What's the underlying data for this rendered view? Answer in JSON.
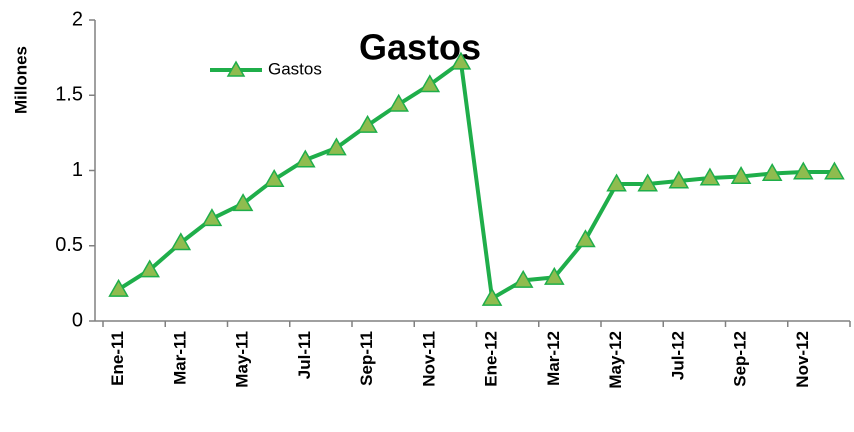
{
  "chart_data": {
    "type": "line",
    "title": "Gastos",
    "y_label": "Millones",
    "categories": [
      "Ene-11",
      null,
      "Mar-11",
      null,
      "May-11",
      null,
      "Jul-11",
      null,
      "Sep-11",
      null,
      "Nov-11",
      null,
      "Ene-12",
      null,
      "Mar-12",
      null,
      "May-12",
      null,
      "Jul-12",
      null,
      "Sep-12",
      null,
      "Nov-12",
      null
    ],
    "series": [
      {
        "name": "Gastos",
        "color": "#1fae4a",
        "marker_color": "#8fbc4f",
        "values": [
          0.21,
          0.34,
          0.52,
          0.68,
          0.78,
          0.94,
          1.07,
          1.15,
          1.3,
          1.44,
          1.57,
          1.72,
          0.15,
          0.27,
          0.29,
          0.54,
          0.91,
          0.91,
          0.93,
          0.95,
          0.96,
          0.98,
          0.99,
          0.99
        ]
      }
    ],
    "ylim": [
      0,
      2
    ],
    "yticks": [
      0,
      0.5,
      1,
      1.5,
      2
    ],
    "legend": "top-left"
  }
}
